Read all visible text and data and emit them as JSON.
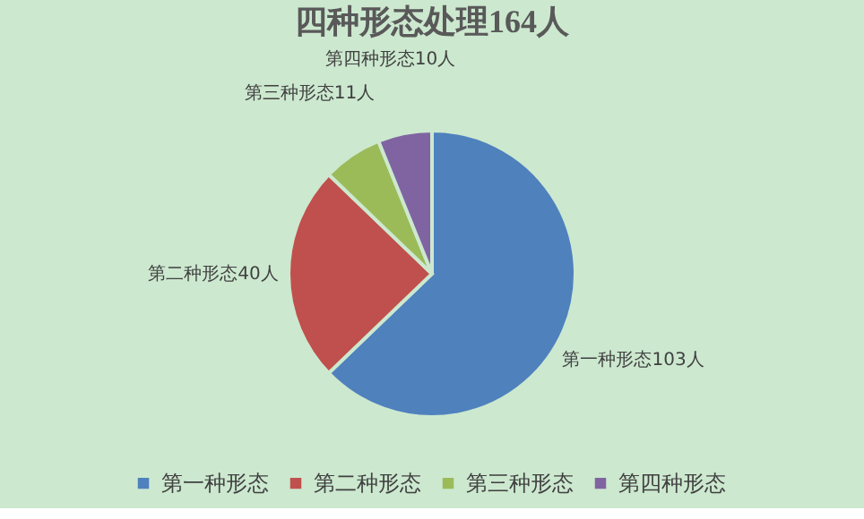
{
  "chart_data": {
    "type": "pie",
    "title": "四种形态处理164人",
    "categories": [
      "第一种形态",
      "第二种形态",
      "第三种形态",
      "第四种形态"
    ],
    "values": [
      103,
      40,
      11,
      10
    ],
    "colors": [
      "#4f81bd",
      "#c0504d",
      "#9bbb59",
      "#8064a2"
    ],
    "value_labels": [
      "第一种形态103人",
      "第二种形态40人",
      "第三种形态11人",
      "第四种形态10人"
    ],
    "legend": "bottom"
  }
}
